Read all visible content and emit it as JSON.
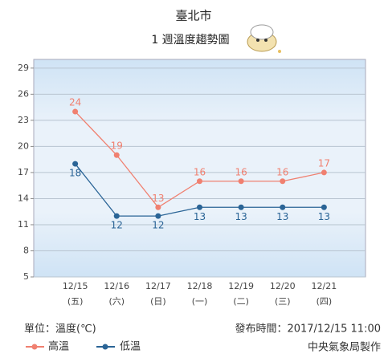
{
  "chart_data": {
    "type": "line",
    "title": "臺北市",
    "subtitle": "1 週溫度趨勢圖",
    "categories": [
      "12/15",
      "12/16",
      "12/17",
      "12/18",
      "12/19",
      "12/20",
      "12/21"
    ],
    "weekdays": [
      "(五)",
      "(六)",
      "(日)",
      "(一)",
      "(二)",
      "(三)",
      "(四)"
    ],
    "series": [
      {
        "name": "高溫",
        "color": "#f08070",
        "values": [
          24,
          19,
          13,
          16,
          16,
          16,
          17
        ]
      },
      {
        "name": "低溫",
        "color": "#2a6496",
        "values": [
          18,
          12,
          12,
          13,
          13,
          13,
          13
        ]
      }
    ],
    "ylim": [
      5,
      30
    ],
    "yticks": [
      5,
      8,
      11,
      14,
      17,
      20,
      23,
      26,
      29
    ],
    "grid": true,
    "unit_label": "單位：溫度(℃)",
    "publish_time": "發布時間：2017/12/15 11:00",
    "credit": "中央氣象局製作"
  }
}
